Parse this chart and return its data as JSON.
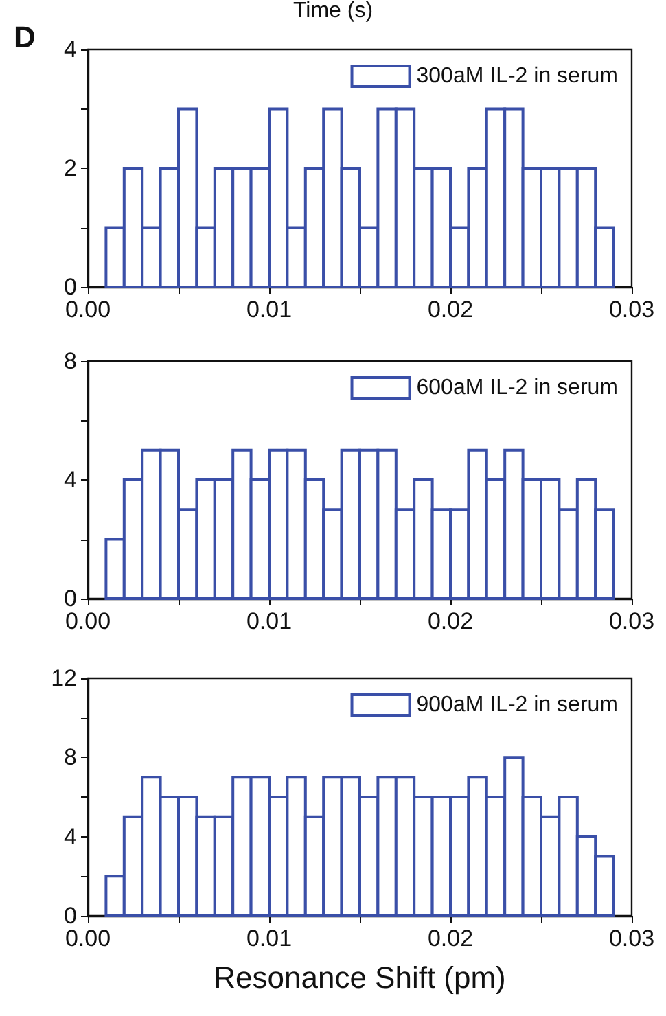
{
  "chart_data": [
    {
      "type": "histogram",
      "annotations": [
        "Time (s)",
        "D"
      ],
      "bins": [
        0.001,
        0.002,
        0.003,
        0.004,
        0.005,
        0.006,
        0.007,
        0.008,
        0.009,
        0.01,
        0.011,
        0.012,
        0.013,
        0.014,
        0.015,
        0.016,
        0.017,
        0.018,
        0.019,
        0.02,
        0.021,
        0.022,
        0.023,
        0.024,
        0.025,
        0.026,
        0.027,
        0.028,
        0.029
      ],
      "series": [
        {
          "name": "300aM IL-2 in serum",
          "color": "#3a4fa8",
          "values": [
            1,
            2,
            1,
            2,
            3,
            1,
            2,
            2,
            2,
            3,
            1,
            2,
            3,
            2,
            1,
            3,
            3,
            2,
            2,
            1,
            2,
            3,
            3,
            2,
            2,
            2,
            2,
            1
          ]
        }
      ],
      "xlim": [
        0,
        0.03
      ],
      "xticks": [
        {
          "value": 0,
          "label": "0.00"
        },
        {
          "value": 0.005,
          "label": null
        },
        0.01,
        {
          "value": 0.015,
          "label": null
        },
        0.02,
        {
          "value": 0.025,
          "label": null
        },
        0.03
      ],
      "ylim": [
        0,
        4
      ],
      "yticks": [
        0,
        {
          "value": 1,
          "label": null
        },
        2,
        {
          "value": 3,
          "label": null
        },
        4
      ],
      "legend": "top right",
      "grid": false
    },
    {
      "type": "histogram",
      "bins": [
        0.001,
        0.002,
        0.003,
        0.004,
        0.005,
        0.006,
        0.007,
        0.008,
        0.009,
        0.01,
        0.011,
        0.012,
        0.013,
        0.014,
        0.015,
        0.016,
        0.017,
        0.018,
        0.019,
        0.02,
        0.021,
        0.022,
        0.023,
        0.024,
        0.025,
        0.026,
        0.027,
        0.028,
        0.029
      ],
      "series": [
        {
          "name": "600aM IL-2 in serum",
          "color": "#3a4fa8",
          "values": [
            2,
            4,
            5,
            5,
            3,
            4,
            4,
            5,
            4,
            5,
            5,
            4,
            3,
            5,
            5,
            5,
            3,
            4,
            3,
            3,
            5,
            4,
            5,
            4,
            4,
            3,
            4,
            3
          ]
        }
      ],
      "xlim": [
        0,
        0.03
      ],
      "xticks": [
        {
          "value": 0,
          "label": "0.00"
        },
        {
          "value": 0.005,
          "label": null
        },
        0.01,
        {
          "value": 0.015,
          "label": null
        },
        0.02,
        {
          "value": 0.025,
          "label": null
        },
        0.03
      ],
      "ylim": [
        0,
        8
      ],
      "yticks": [
        0,
        {
          "value": 2,
          "label": null
        },
        4,
        {
          "value": 6,
          "label": null
        },
        8
      ],
      "legend": "top right",
      "grid": false
    },
    {
      "type": "histogram",
      "xlabel": "Resonance Shift (pm)",
      "bins": [
        0.001,
        0.002,
        0.003,
        0.004,
        0.005,
        0.006,
        0.007,
        0.008,
        0.009,
        0.01,
        0.011,
        0.012,
        0.013,
        0.014,
        0.015,
        0.016,
        0.017,
        0.018,
        0.019,
        0.02,
        0.021,
        0.022,
        0.023,
        0.024,
        0.025,
        0.026,
        0.027,
        0.028,
        0.029
      ],
      "series": [
        {
          "name": "900aM IL-2 in serum",
          "color": "#3a4fa8",
          "values": [
            2,
            5,
            7,
            6,
            6,
            5,
            5,
            7,
            7,
            6,
            7,
            5,
            7,
            7,
            6,
            7,
            7,
            6,
            6,
            6,
            7,
            6,
            8,
            6,
            5,
            6,
            4,
            3
          ]
        }
      ],
      "xlim": [
        0,
        0.03
      ],
      "xticks": [
        {
          "value": 0,
          "label": "0.00"
        },
        {
          "value": 0.005,
          "label": null
        },
        0.01,
        {
          "value": 0.015,
          "label": null
        },
        0.02,
        {
          "value": 0.025,
          "label": null
        },
        0.03
      ],
      "ylim": [
        0,
        12
      ],
      "yticks": [
        0,
        {
          "value": 2,
          "label": null
        },
        4,
        {
          "value": 6,
          "label": null
        },
        8,
        {
          "value": 10,
          "label": null
        },
        12
      ],
      "legend": "top right",
      "grid": false
    }
  ]
}
